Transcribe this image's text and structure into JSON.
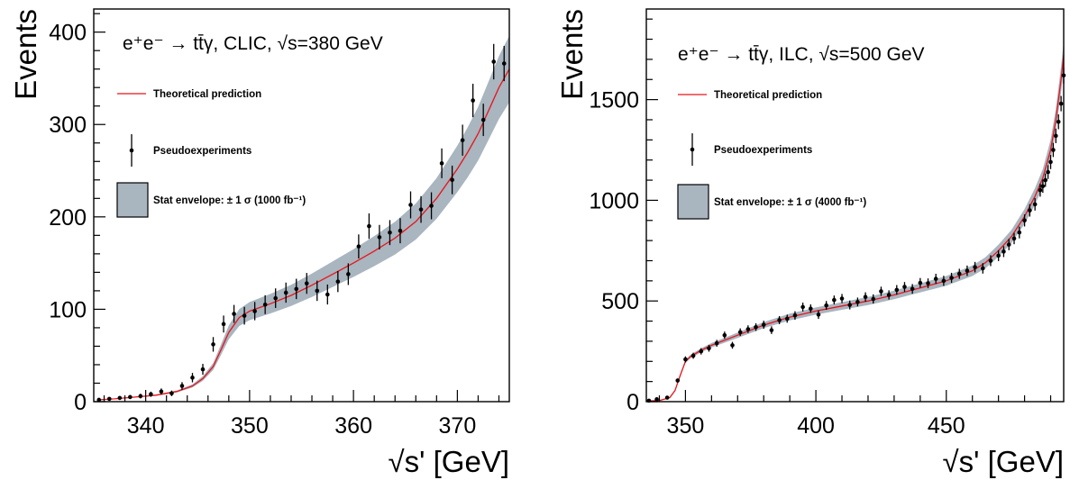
{
  "chart_data": [
    {
      "type": "line",
      "title": "e⁺e⁻ → tt̄γ, CLIC, √s=380 GeV",
      "xlabel": "√s' [GeV]",
      "ylabel": "Events",
      "xlim": [
        335,
        375
      ],
      "ylim": [
        0,
        425
      ],
      "x_ticks": [
        340,
        350,
        360,
        370
      ],
      "y_ticks": [
        0,
        100,
        200,
        300,
        400
      ],
      "grid": false,
      "legend_position": "upper-left",
      "legend": {
        "theory": "Theoretical prediction",
        "pseudo": "Pseudoexperiments",
        "envelope": "Stat envelope: ± 1 σ (1000 fb⁻¹)"
      },
      "theory_curve": {
        "x": [
          335.5,
          337,
          339,
          341,
          343,
          344.5,
          345.5,
          346.5,
          347.2,
          348,
          349,
          350,
          352,
          354,
          356,
          358,
          360,
          362,
          364,
          366,
          368,
          370,
          371,
          372,
          373,
          374,
          375
        ],
        "y": [
          2,
          3,
          5,
          7,
          11,
          17,
          25,
          38,
          55,
          75,
          91,
          98,
          106,
          115,
          126,
          138,
          150,
          163,
          177,
          195,
          220,
          252,
          270,
          290,
          315,
          340,
          360
        ]
      },
      "envelope_relative_halfwidth": 0.1,
      "series": [
        {
          "name": "Pseudoexperiments",
          "x": [
            335.5,
            336.5,
            337.5,
            338.5,
            339.5,
            340.5,
            341.5,
            342.5,
            343.5,
            344.5,
            345.5,
            346.5,
            347.5,
            348.5,
            349.5,
            350.5,
            351.5,
            352.5,
            353.5,
            354.5,
            355.5,
            356.5,
            357.5,
            358.5,
            359.5,
            360.5,
            361.5,
            362.5,
            363.5,
            364.5,
            365.5,
            366.5,
            367.5,
            368.5,
            369.5,
            370.5,
            371.5,
            372.5,
            373.5,
            374.5
          ],
          "y": [
            2,
            3,
            4,
            5,
            6,
            8,
            11,
            9,
            17,
            26,
            35,
            62,
            84,
            95,
            93,
            98,
            105,
            112,
            118,
            122,
            128,
            120,
            116,
            130,
            138,
            168,
            190,
            178,
            183,
            185,
            213,
            208,
            212,
            258,
            240,
            283,
            326,
            305,
            368,
            366
          ],
          "yerr": [
            1.5,
            1.8,
            2,
            2.2,
            2.5,
            2.8,
            3.3,
            3,
            4.1,
            5.1,
            5.9,
            7.9,
            9.2,
            9.7,
            9.6,
            9.9,
            10.2,
            10.6,
            10.9,
            11,
            11.3,
            11,
            10.8,
            11.4,
            11.7,
            13,
            13.8,
            13.3,
            13.5,
            13.6,
            14.6,
            14.4,
            14.6,
            16.1,
            15.5,
            16.8,
            18.1,
            17.5,
            19.2,
            19.1
          ]
        }
      ]
    },
    {
      "type": "line",
      "title": "e⁺e⁻ → tt̄γ, ILC, √s=500 GeV",
      "xlabel": "√s' [GeV]",
      "ylabel": "Events",
      "xlim": [
        335,
        495
      ],
      "ylim": [
        0,
        1950
      ],
      "x_ticks": [
        350,
        400,
        450
      ],
      "y_ticks": [
        0,
        500,
        1000,
        1500
      ],
      "grid": false,
      "legend_position": "upper-left",
      "legend": {
        "theory": "Theoretical prediction",
        "pseudo": "Pseudoexperiments",
        "envelope": "Stat envelope: ± 1 σ (4000 fb⁻¹)"
      },
      "theory_curve": {
        "x": [
          335.5,
          340,
          344,
          346,
          348,
          350,
          352,
          356,
          360,
          370,
          380,
          390,
          400,
          410,
          420,
          430,
          440,
          450,
          460,
          465,
          470,
          475,
          480,
          484,
          487,
          490,
          492,
          494,
          495
        ],
        "y": [
          3,
          6,
          20,
          55,
          130,
          200,
          225,
          255,
          280,
          330,
          380,
          420,
          450,
          475,
          500,
          530,
          565,
          600,
          650,
          690,
          750,
          820,
          920,
          1020,
          1110,
          1250,
          1400,
          1600,
          1720
        ]
      },
      "envelope_relative_halfwidth": 0.04,
      "series": [
        {
          "name": "Pseudoexperiments",
          "x": [
            336,
            339,
            343,
            347,
            350,
            353,
            356,
            359,
            362,
            365,
            368,
            371,
            374,
            377,
            380,
            383,
            386,
            389,
            392,
            395,
            398,
            401,
            404,
            407,
            410,
            413,
            416,
            419,
            422,
            425,
            428,
            431,
            434,
            437,
            440,
            443,
            446,
            449,
            452,
            455,
            458,
            461,
            464,
            467,
            470,
            472,
            474,
            476,
            478,
            480,
            482,
            484,
            486,
            487,
            488,
            489,
            490,
            491,
            492,
            493,
            494,
            495
          ],
          "y": [
            5,
            12,
            20,
            105,
            210,
            228,
            250,
            265,
            290,
            330,
            280,
            345,
            360,
            370,
            382,
            355,
            405,
            412,
            428,
            470,
            462,
            432,
            478,
            505,
            512,
            480,
            495,
            520,
            510,
            548,
            530,
            555,
            570,
            560,
            590,
            588,
            610,
            600,
            615,
            635,
            650,
            668,
            662,
            700,
            725,
            745,
            780,
            810,
            840,
            900,
            950,
            980,
            1050,
            1070,
            1100,
            1140,
            1190,
            1250,
            1320,
            1390,
            1480,
            1620
          ],
          "yerr": [
            3,
            4,
            5,
            10,
            15,
            15,
            16,
            17,
            17,
            18,
            17,
            19,
            19,
            19,
            20,
            19,
            20,
            20,
            21,
            22,
            21,
            21,
            22,
            22,
            23,
            22,
            22,
            23,
            23,
            23,
            23,
            24,
            24,
            24,
            24,
            24,
            25,
            25,
            25,
            25,
            26,
            26,
            26,
            27,
            27,
            27,
            28,
            28,
            29,
            30,
            31,
            31,
            32,
            33,
            33,
            34,
            35,
            35,
            36,
            37,
            38,
            40
          ]
        }
      ]
    }
  ]
}
